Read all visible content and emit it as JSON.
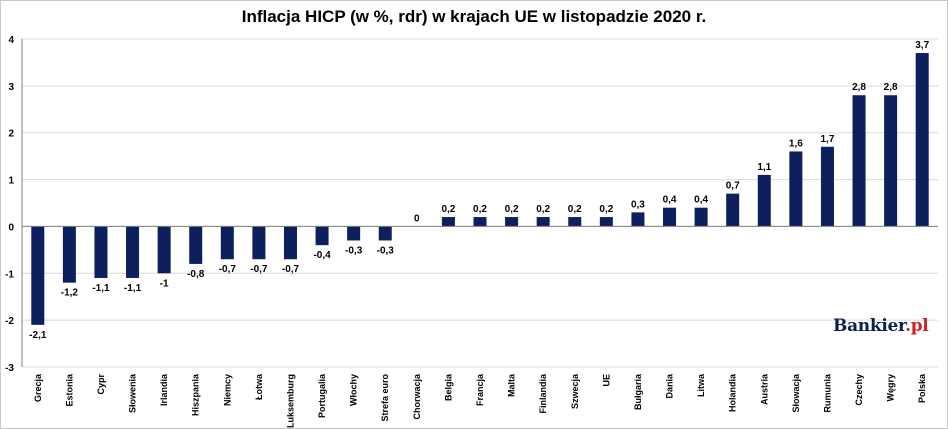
{
  "title": "Inflacja HICP (w %, rdr) w krajach UE w listopadzie 2020 r.",
  "logo": {
    "text": "Bankier",
    "dot": ".pl"
  },
  "colors": {
    "bar": "#0d1f5c",
    "grid": "#d9d9d9",
    "axis": "#808080"
  },
  "chart_data": {
    "type": "bar",
    "title": "Inflacja HICP (w %, rdr) w krajach UE w listopadzie 2020 r.",
    "xlabel": "",
    "ylabel": "",
    "ylim": [
      -3,
      4
    ],
    "yticks": [
      -3,
      -2,
      -1,
      0,
      1,
      2,
      3,
      4
    ],
    "grid": true,
    "categories": [
      "Grecja",
      "Estonia",
      "Cypr",
      "Słowenia",
      "Irlandia",
      "Hiszpania",
      "Niemcy",
      "Łotwa",
      "Luksemburg",
      "Portugalia",
      "Włochy",
      "Strefa euro",
      "Chorwacja",
      "Belgia",
      "Francja",
      "Malta",
      "Finlandia",
      "Szwecja",
      "UE",
      "Bułgaria",
      "Dania",
      "Litwa",
      "Holandia",
      "Austria",
      "Słowacja",
      "Rumunia",
      "Czechy",
      "Węgry",
      "Polska"
    ],
    "values": [
      -2.1,
      -1.2,
      -1.1,
      -1.1,
      -1,
      -0.8,
      -0.7,
      -0.7,
      -0.7,
      -0.4,
      -0.3,
      -0.3,
      0,
      0.2,
      0.2,
      0.2,
      0.2,
      0.2,
      0.2,
      0.3,
      0.4,
      0.4,
      0.7,
      1.1,
      1.6,
      1.7,
      2.8,
      2.8,
      3.7
    ],
    "data_labels": [
      "-2,1",
      "-1,2",
      "-1,1",
      "-1,1",
      "-1",
      "-0,8",
      "-0,7",
      "-0,7",
      "-0,7",
      "-0,4",
      "-0,3",
      "-0,3",
      "0",
      "0,2",
      "0,2",
      "0,2",
      "0,2",
      "0,2",
      "0,2",
      "0,3",
      "0,4",
      "0,4",
      "0,7",
      "1,1",
      "1,6",
      "1,7",
      "2,8",
      "2,8",
      "3,7"
    ]
  }
}
